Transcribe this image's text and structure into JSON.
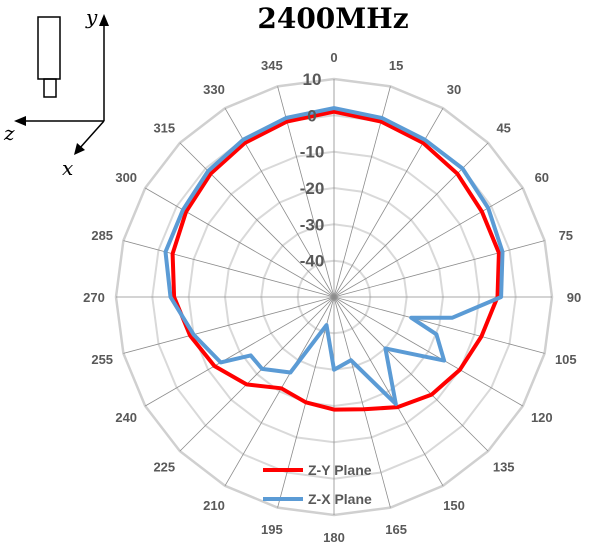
{
  "chart_data": {
    "type": "polar-line",
    "title": "2400MHz",
    "angle_unit": "degrees",
    "angle_direction": "clockwise",
    "angle_zero": "top",
    "angle_ticks": [
      "0",
      "15",
      "30",
      "45",
      "60",
      "75",
      "90",
      "105",
      "120",
      "135",
      "150",
      "165",
      "180",
      "195",
      "210",
      "225",
      "240",
      "255",
      "270",
      "285",
      "300",
      "315",
      "330",
      "345"
    ],
    "radial_ticks": [
      "10",
      "0",
      "-10",
      "-20",
      "-30",
      "-40"
    ],
    "rlim": [
      -50,
      10
    ],
    "grid": true,
    "legend_position": "bottom-center",
    "series": [
      {
        "name": "Z-Y Plane",
        "color": "#ff0000",
        "angles": [
          0,
          15,
          30,
          45,
          60,
          75,
          90,
          105,
          120,
          135,
          150,
          165,
          180,
          195,
          210,
          225,
          240,
          255,
          270,
          285,
          300,
          315,
          330,
          345
        ],
        "values": [
          1,
          0,
          -1,
          -2,
          -3,
          -3,
          -5,
          -8,
          -10,
          -12,
          -15,
          -18,
          -19,
          -20,
          -21,
          -16,
          -12,
          -9,
          -6,
          -4,
          -3,
          -2,
          -1,
          0
        ]
      },
      {
        "name": "Z-X Plane",
        "color": "#5b9bd5",
        "angles": [
          0,
          15,
          30,
          45,
          60,
          75,
          90,
          100,
          105,
          110,
          120,
          135,
          150,
          165,
          180,
          195,
          210,
          225,
          235,
          240,
          255,
          270,
          285,
          300,
          315,
          330,
          345
        ],
        "values": [
          2,
          1,
          0,
          0,
          -1,
          -2,
          -4,
          -17,
          -28,
          -20,
          -15,
          -30,
          -16,
          -32,
          -30,
          -42,
          -26,
          -22,
          -22,
          -14,
          -10,
          -5,
          -2,
          -2,
          -1,
          0,
          1
        ]
      }
    ]
  },
  "inset": {
    "axis_y": "y",
    "axis_z": "z",
    "axis_x": "x"
  }
}
